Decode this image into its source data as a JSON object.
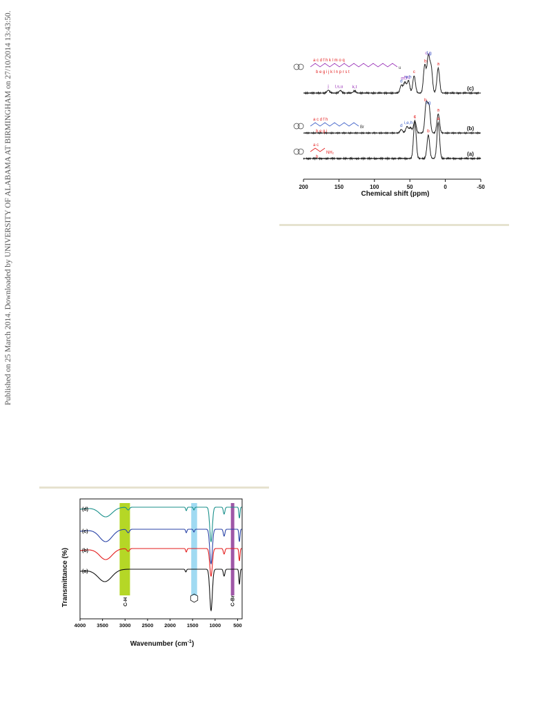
{
  "side_note": "Published on 25 March 2014. Downloaded by UNIVERSITY OF ALABAMA AT BIRMINGHAM on 27/10/2014 13:43:50.",
  "colors": {
    "rule": "#e6e2cf",
    "trace_a": "#111111",
    "trace_b": "#e31b1b",
    "trace_c": "#2741a6",
    "trace_d": "#178f8a",
    "band_ch": "#a8d000",
    "band_ring": "#8fd3f0",
    "band_cbr": "#8e3a98",
    "label_red": "#e31b1b",
    "label_blue": "#3d5fc8",
    "label_purple": "#9a32b8"
  },
  "chart_data": [
    {
      "type": "line",
      "xlabel": "Chemical shift (ppm)",
      "ylabel": "",
      "xlim": [
        200,
        -50
      ],
      "xticks": [
        "200",
        "150",
        "100",
        "50",
        "0",
        "-50"
      ],
      "grid": false,
      "series": [
        {
          "name": "(a)",
          "peaks": [
            {
              "x": 43,
              "h": 1.0
            },
            {
              "x": 24,
              "h": 0.62
            },
            {
              "x": 10,
              "h": 0.95
            }
          ],
          "peak_labels": [
            {
              "x": 43,
              "text": "c",
              "color": "red"
            },
            {
              "x": 24,
              "text": "b",
              "color": "red"
            },
            {
              "x": 10,
              "text": "a",
              "color": "red"
            }
          ]
        },
        {
          "name": "(b)",
          "peaks": [
            {
              "x": 62,
              "h": 0.12
            },
            {
              "x": 54,
              "h": 0.22
            },
            {
              "x": 49,
              "h": 0.18
            },
            {
              "x": 43,
              "h": 0.42
            },
            {
              "x": 27,
              "h": 1.0
            },
            {
              "x": 23,
              "h": 0.9
            },
            {
              "x": 10,
              "h": 0.66
            }
          ],
          "peak_labels": [
            {
              "x": 62,
              "text": "d",
              "color": "blue"
            },
            {
              "x": 52,
              "text": "i,e,h",
              "color": "blue"
            },
            {
              "x": 43,
              "text": "c",
              "color": "red"
            },
            {
              "x": 28,
              "text": "b",
              "color": "red"
            },
            {
              "x": 24,
              "text": "f,g",
              "color": "blue"
            },
            {
              "x": 10,
              "text": "a",
              "color": "red"
            }
          ]
        },
        {
          "name": "(c)",
          "peaks": [
            {
              "x": 165,
              "h": 0.08
            },
            {
              "x": 148,
              "h": 0.07
            },
            {
              "x": 128,
              "h": 0.06
            },
            {
              "x": 62,
              "h": 0.22
            },
            {
              "x": 57,
              "h": 0.3
            },
            {
              "x": 52,
              "h": 0.34
            },
            {
              "x": 44,
              "h": 0.48
            },
            {
              "x": 29,
              "h": 0.78
            },
            {
              "x": 24,
              "h": 1.0
            },
            {
              "x": 20,
              "h": 0.7
            },
            {
              "x": 10,
              "h": 0.7
            }
          ],
          "peak_labels": [
            {
              "x": 165,
              "text": "j",
              "color": "purple"
            },
            {
              "x": 150,
              "text": "l,s,u",
              "color": "purple"
            },
            {
              "x": 128,
              "text": "k,t",
              "color": "purple"
            },
            {
              "x": 62,
              "text": "d",
              "color": "blue"
            },
            {
              "x": 58,
              "text": "m,r",
              "color": "purple"
            },
            {
              "x": 54,
              "text": "n,q",
              "color": "purple"
            },
            {
              "x": 52,
              "text": "e,h",
              "color": "blue"
            },
            {
              "x": 44,
              "text": "c",
              "color": "red"
            },
            {
              "x": 28,
              "text": "b",
              "color": "red"
            },
            {
              "x": 24,
              "text": "o,p",
              "color": "purple"
            },
            {
              "x": 23,
              "text": "f,g",
              "color": "blue"
            },
            {
              "x": 10,
              "text": "a",
              "color": "red"
            }
          ]
        }
      ],
      "structure_labels": {
        "a": {
          "top": "a  c",
          "bottom": "b",
          "group": "NH₂"
        },
        "b": {
          "top": "a  c  d  f  h",
          "bottom": "b  e  g  i",
          "group": "Br"
        },
        "c": {
          "top": "a  c  d  f  h  k   l   m  o  q",
          "bottom": "b  e  g  i  j  k  l  n  p  r  s  t",
          "group": "u"
        }
      }
    },
    {
      "type": "line",
      "xlabel": "Wavenumber (cm",
      "xlabel_sup": "-1",
      "xlabel_end": ")",
      "ylabel": "Transmittance (%)",
      "xlim": [
        4000,
        400
      ],
      "xticks": [
        "4000",
        "3500",
        "3000",
        "2500",
        "2000",
        "1500",
        "1000",
        "500"
      ],
      "grid": false,
      "bands": [
        {
          "label": "C-H",
          "from": 3120,
          "to": 2890
        },
        {
          "label": "",
          "from": 1530,
          "to": 1400
        },
        {
          "label": "C-Br",
          "from": 650,
          "to": 600
        }
      ],
      "series": [
        {
          "name": "(a)"
        },
        {
          "name": "(b)"
        },
        {
          "name": "(c)"
        },
        {
          "name": "(d)"
        }
      ]
    }
  ]
}
